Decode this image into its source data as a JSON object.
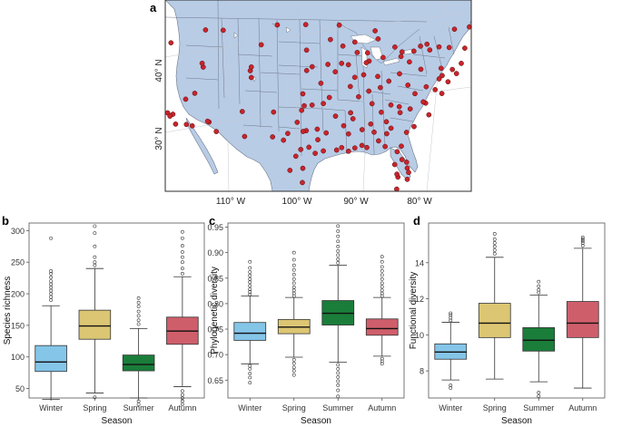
{
  "panels": {
    "a": {
      "label": "a",
      "lat_labels": [
        "40° N",
        "30° N"
      ],
      "lon_labels": [
        "110° W",
        "100° W",
        "90° W",
        "80° W"
      ],
      "colors": {
        "ocean": "#ffffff",
        "land": "#b8cce6",
        "border": "#6e7787",
        "site": "#c8242b"
      }
    },
    "b": {
      "label": "b"
    },
    "c": {
      "label": "c"
    },
    "d": {
      "label": "d"
    }
  },
  "colors": {
    "Winter": "#84c5e8",
    "Spring": "#dcc673",
    "Summer": "#1b7d3a",
    "Autumn": "#cf5e6b"
  },
  "chart_data": [
    {
      "type": "box",
      "panel": "b",
      "categories": [
        "Winter",
        "Spring",
        "Summer",
        "Autumn"
      ],
      "xlabel": "Season",
      "ylabel": "Species richness",
      "ylim": [
        35,
        312
      ],
      "yticks": [
        50,
        100,
        150,
        200,
        250,
        300
      ],
      "grid": false,
      "boxes": [
        {
          "min": 33,
          "q1": 77,
          "median": 92,
          "q3": 118,
          "max": 181,
          "outliers": [
            190,
            195,
            200,
            205,
            210,
            215,
            220,
            226,
            232,
            236,
            288
          ]
        },
        {
          "min": 43,
          "q1": 128,
          "median": 149,
          "q3": 174,
          "max": 240,
          "outliers": [
            36,
            245,
            250,
            258,
            275,
            296,
            307
          ]
        },
        {
          "min": 35,
          "q1": 78,
          "median": 88,
          "q3": 103,
          "max": 145,
          "outliers": [
            25,
            30,
            152,
            158,
            165,
            172,
            180,
            186,
            193
          ]
        },
        {
          "min": 53,
          "q1": 120,
          "median": 141,
          "q3": 163,
          "max": 227,
          "outliers": [
            25,
            30,
            35,
            40,
            46,
            232,
            240,
            250,
            258,
            266,
            276,
            288,
            298
          ]
        }
      ]
    },
    {
      "type": "box",
      "panel": "c",
      "categories": [
        "Winter",
        "Spring",
        "Summer",
        "Autumn"
      ],
      "xlabel": "Season",
      "ylabel": "Phylogenetic diversity",
      "ylim": [
        0.615,
        0.958
      ],
      "yticks": [
        0.65,
        0.7,
        0.75,
        0.8,
        0.85,
        0.9,
        0.95
      ],
      "grid": false,
      "boxes": [
        {
          "min": 0.682,
          "q1": 0.728,
          "median": 0.742,
          "q3": 0.763,
          "max": 0.815,
          "outliers": [
            0.645,
            0.655,
            0.663,
            0.672,
            0.678,
            0.818,
            0.823,
            0.828,
            0.835,
            0.842,
            0.848,
            0.855,
            0.862,
            0.87,
            0.882
          ]
        },
        {
          "min": 0.695,
          "q1": 0.741,
          "median": 0.754,
          "q3": 0.769,
          "max": 0.812,
          "outliers": [
            0.66,
            0.668,
            0.675,
            0.683,
            0.69,
            0.815,
            0.82,
            0.826,
            0.832,
            0.84,
            0.848,
            0.857,
            0.866,
            0.875,
            0.886,
            0.9
          ]
        },
        {
          "min": 0.685,
          "q1": 0.758,
          "median": 0.781,
          "q3": 0.806,
          "max": 0.875,
          "outliers": [
            0.618,
            0.63,
            0.64,
            0.648,
            0.656,
            0.664,
            0.672,
            0.68,
            0.88,
            0.887,
            0.895,
            0.903,
            0.912,
            0.922,
            0.932,
            0.942,
            0.952
          ]
        },
        {
          "min": 0.697,
          "q1": 0.738,
          "median": 0.751,
          "q3": 0.77,
          "max": 0.812,
          "outliers": [
            0.682,
            0.687,
            0.692,
            0.815,
            0.82,
            0.826,
            0.833,
            0.84,
            0.848,
            0.856,
            0.864,
            0.872,
            0.882,
            0.892
          ]
        }
      ]
    },
    {
      "type": "box",
      "panel": "d",
      "categories": [
        "Winter",
        "Spring",
        "Summer",
        "Autumn"
      ],
      "xlabel": "Season",
      "ylabel": "Functional diversity",
      "ylim": [
        6.5,
        16.2
      ],
      "yticks": [
        8,
        10,
        12,
        14
      ],
      "grid": false,
      "boxes": [
        {
          "min": 7.5,
          "q1": 8.65,
          "median": 9.05,
          "q3": 9.5,
          "max": 10.7,
          "outliers": [
            7.05,
            7.2,
            10.8,
            10.95,
            11.1,
            11.2
          ]
        },
        {
          "min": 7.55,
          "q1": 9.85,
          "median": 10.65,
          "q3": 11.75,
          "max": 14.3,
          "outliers": [
            14.5,
            14.7,
            14.9,
            15.1,
            15.3,
            15.6
          ]
        },
        {
          "min": 7.4,
          "q1": 9.1,
          "median": 9.7,
          "q3": 10.4,
          "max": 12.2,
          "outliers": [
            6.6,
            6.8,
            12.35,
            12.5,
            12.7,
            12.95
          ]
        },
        {
          "min": 7.05,
          "q1": 9.85,
          "median": 10.65,
          "q3": 11.85,
          "max": 14.8,
          "outliers": [
            14.95,
            15.1,
            15.2,
            15.3,
            15.4
          ]
        }
      ]
    }
  ],
  "map_data": {
    "sites": [
      [
        -122.4,
        47.6
      ],
      [
        -122.3,
        47.2
      ],
      [
        -121.9,
        47.9
      ],
      [
        -117.4,
        47.7
      ],
      [
        -116.2,
        43.6
      ],
      [
        -119.8,
        46.2
      ],
      [
        -122.7,
        45.5
      ],
      [
        -123.0,
        44.9
      ],
      [
        -121.3,
        44.1
      ],
      [
        -111.9,
        40.7
      ],
      [
        -112.0,
        41.2
      ],
      [
        -104.9,
        39.7
      ],
      [
        -105.0,
        40.6
      ],
      [
        -106.6,
        35.1
      ],
      [
        -111.9,
        33.4
      ],
      [
        -110.9,
        32.2
      ],
      [
        -115.1,
        36.2
      ],
      [
        -117.2,
        32.7
      ],
      [
        -118.2,
        34.1
      ],
      [
        -117.4,
        34.0
      ],
      [
        -119.0,
        35.4
      ],
      [
        -121.5,
        38.6
      ],
      [
        -122.4,
        37.8
      ],
      [
        -121.9,
        37.3
      ],
      [
        -119.8,
        36.7
      ],
      [
        -118.4,
        34.2
      ],
      [
        -117.9,
        33.7
      ],
      [
        -96.8,
        32.8
      ],
      [
        -97.3,
        32.7
      ],
      [
        -97.7,
        30.3
      ],
      [
        -98.5,
        29.4
      ],
      [
        -95.4,
        29.8
      ],
      [
        -94.1,
        30.1
      ],
      [
        -90.1,
        30.0
      ],
      [
        -91.2,
        30.5
      ],
      [
        -93.7,
        32.5
      ],
      [
        -92.3,
        34.7
      ],
      [
        -94.6,
        39.1
      ],
      [
        -96.7,
        40.8
      ],
      [
        -95.9,
        41.3
      ],
      [
        -97.3,
        37.7
      ],
      [
        -97.5,
        35.5
      ],
      [
        -95.9,
        36.2
      ],
      [
        -93.3,
        44.9
      ],
      [
        -92.1,
        46.8
      ],
      [
        -89.4,
        43.1
      ],
      [
        -87.9,
        43.0
      ],
      [
        -87.6,
        41.9
      ],
      [
        -88.0,
        41.7
      ],
      [
        -86.2,
        39.8
      ],
      [
        -85.7,
        38.3
      ],
      [
        -84.5,
        39.1
      ],
      [
        -83.0,
        40.0
      ],
      [
        -81.7,
        41.5
      ],
      [
        -83.0,
        42.3
      ],
      [
        -85.6,
        42.3
      ],
      [
        -84.4,
        33.7
      ],
      [
        -86.8,
        33.5
      ],
      [
        -86.8,
        36.2
      ],
      [
        -90.0,
        35.1
      ],
      [
        -84.3,
        30.4
      ],
      [
        -82.5,
        27.9
      ],
      [
        -81.4,
        28.5
      ],
      [
        -80.2,
        25.8
      ],
      [
        -80.1,
        26.7
      ],
      [
        -81.7,
        30.3
      ],
      [
        -80.9,
        35.2
      ],
      [
        -78.6,
        35.8
      ],
      [
        -77.4,
        37.5
      ],
      [
        -76.3,
        36.9
      ],
      [
        -77.0,
        38.9
      ],
      [
        -76.6,
        39.3
      ],
      [
        -75.2,
        40.0
      ],
      [
        -74.0,
        40.7
      ],
      [
        -73.8,
        42.7
      ],
      [
        -71.1,
        42.4
      ],
      [
        -71.4,
        41.8
      ],
      [
        -72.7,
        41.8
      ],
      [
        -79.9,
        40.4
      ],
      [
        -78.9,
        42.9
      ],
      [
        -76.1,
        43.0
      ],
      [
        -77.6,
        43.2
      ],
      [
        -80.0,
        32.8
      ],
      [
        -81.1,
        32.1
      ],
      [
        -82.4,
        34.8
      ],
      [
        -90.2,
        38.6
      ],
      [
        -93.3,
        37.2
      ],
      [
        -88.0,
        30.7
      ],
      [
        -89.1,
        30.4
      ],
      [
        -92.0,
        30.2
      ],
      [
        -106.5,
        31.8
      ],
      [
        -101.8,
        35.2
      ],
      [
        -100.4,
        31.5
      ],
      [
        -97.4,
        27.8
      ],
      [
        -97.5,
        25.9
      ],
      [
        -111.0,
        45.7
      ],
      [
        -108.5,
        45.8
      ],
      [
        -104.8,
        41.1
      ],
      [
        -103.2,
        44.1
      ],
      [
        -96.7,
        43.5
      ],
      [
        -100.8,
        46.8
      ],
      [
        -96.8,
        46.9
      ],
      [
        -113.6,
        37.1
      ],
      [
        -112.1,
        33.5
      ],
      [
        -114.6,
        32.7
      ],
      [
        -115.5,
        32.8
      ],
      [
        -118.8,
        37.5
      ],
      [
        -123.8,
        46.9
      ],
      [
        -124.1,
        44.6
      ],
      [
        -122.9,
        42.3
      ],
      [
        -124.2,
        40.8
      ],
      [
        -122.2,
        40.2
      ],
      [
        -120.5,
        47.4
      ],
      [
        -72.6,
        44.3
      ],
      [
        -71.5,
        43.2
      ],
      [
        -70.3,
        43.7
      ],
      [
        -69.8,
        44.4
      ],
      [
        -68.8,
        44.8
      ],
      [
        -79.4,
        43.7
      ],
      [
        -75.7,
        45.4
      ],
      [
        -73.6,
        45.5
      ],
      [
        -82.9,
        42.9
      ],
      [
        -80.3,
        43.5
      ],
      [
        -81.2,
        42.9
      ],
      [
        -87.0,
        45.9
      ],
      [
        -84.0,
        43.6
      ],
      [
        -86.5,
        44.8
      ],
      [
        -89.8,
        44.5
      ],
      [
        -91.5,
        44.0
      ],
      [
        -92.5,
        40.6
      ],
      [
        -91.6,
        41.7
      ],
      [
        -90.6,
        41.5
      ],
      [
        -93.6,
        41.6
      ],
      [
        -89.6,
        39.8
      ],
      [
        -88.3,
        40.1
      ],
      [
        -87.4,
        37.9
      ],
      [
        -88.9,
        37.2
      ],
      [
        -85.3,
        35.0
      ],
      [
        -83.9,
        35.9
      ],
      [
        -82.6,
        35.6
      ],
      [
        -81.6,
        38.4
      ],
      [
        -80.4,
        37.2
      ],
      [
        -79.0,
        36.0
      ],
      [
        -77.9,
        34.2
      ],
      [
        -75.6,
        38.4
      ],
      [
        -74.5,
        39.4
      ],
      [
        -76.9,
        40.3
      ],
      [
        -78.8,
        38.0
      ],
      [
        -84.2,
        32.1
      ],
      [
        -83.6,
        32.8
      ],
      [
        -85.4,
        31.2
      ],
      [
        -87.2,
        30.4
      ],
      [
        -86.2,
        32.4
      ],
      [
        -88.1,
        32.8
      ],
      [
        -90.2,
        32.3
      ],
      [
        -91.0,
        33.4
      ],
      [
        -89.6,
        34.3
      ],
      [
        -95.1,
        33.0
      ],
      [
        -94.2,
        36.4
      ],
      [
        -97.1,
        36.1
      ],
      [
        -99.7,
        32.4
      ],
      [
        -98.2,
        33.9
      ],
      [
        -102.1,
        31.9
      ],
      [
        -99.5,
        27.5
      ],
      [
        -96.4,
        30.6
      ],
      [
        -95.0,
        31.6
      ],
      [
        -82.3,
        29.6
      ],
      [
        -80.6,
        28.1
      ],
      [
        -81.8,
        26.2
      ],
      [
        -82.0,
        26.6
      ],
      [
        -81.8,
        24.6
      ],
      [
        -80.4,
        27.3
      ]
    ]
  }
}
